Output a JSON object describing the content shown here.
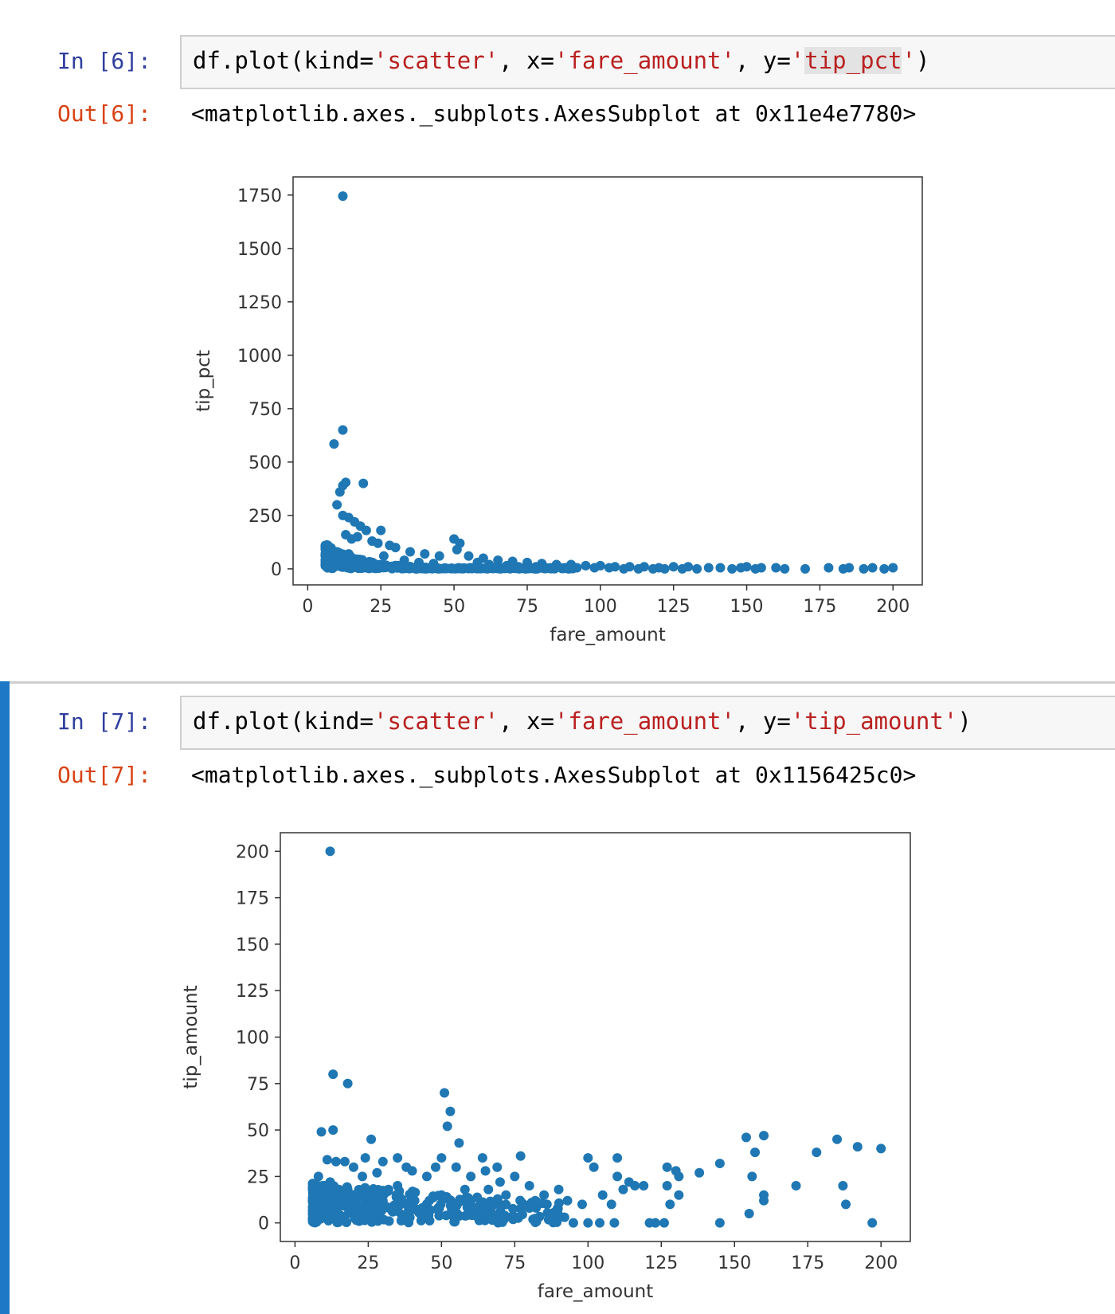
{
  "cells": [
    {
      "in_prompt": "In [6]:",
      "code": {
        "fn": "df.plot(kind=",
        "kind": "'scatter'",
        "sep1": ", x=",
        "x": "'fare_amount'",
        "sep2": ", y=",
        "y_q1": "'",
        "y": "tip_pct",
        "y_q2": "'",
        "end": ")"
      },
      "out_prompt": "Out[6]:",
      "out_text": "<matplotlib.axes._subplots.AxesSubplot at 0x11e4e7780>"
    },
    {
      "in_prompt": "In [7]:",
      "code": {
        "fn": "df.plot(kind=",
        "kind": "'scatter'",
        "sep1": ", x=",
        "x": "'fare_amount'",
        "sep2": ", y=",
        "y": "'tip_amount'",
        "end": ")"
      },
      "out_prompt": "Out[7]:",
      "out_text": "<matplotlib.axes._subplots.AxesSubplot at 0x1156425c0>"
    }
  ],
  "colors": {
    "marker": "#1f77b4",
    "in_prompt": "#303f9f",
    "out_prompt": "#d84315",
    "string": "#ba2121",
    "selected_bar": "#1e78c6"
  },
  "chart_data": [
    {
      "type": "scatter",
      "xlabel": "fare_amount",
      "ylabel": "tip_pct",
      "xlim": [
        -5,
        210
      ],
      "ylim": [
        -75,
        1835
      ],
      "xticks": [
        0,
        25,
        50,
        75,
        100,
        125,
        150,
        175,
        200
      ],
      "yticks": [
        0,
        250,
        500,
        750,
        1000,
        1250,
        1500,
        1750
      ],
      "grid": false,
      "points": [
        [
          12,
          1745
        ],
        [
          12,
          650
        ],
        [
          9,
          585
        ],
        [
          11,
          360
        ],
        [
          12,
          390
        ],
        [
          13,
          405
        ],
        [
          19,
          400
        ],
        [
          10,
          300
        ],
        [
          12,
          250
        ],
        [
          14,
          240
        ],
        [
          16,
          220
        ],
        [
          18,
          200
        ],
        [
          20,
          180
        ],
        [
          25,
          180
        ],
        [
          13,
          160
        ],
        [
          15,
          140
        ],
        [
          17,
          150
        ],
        [
          22,
          130
        ],
        [
          24,
          120
        ],
        [
          28,
          110
        ],
        [
          30,
          100
        ],
        [
          35,
          80
        ],
        [
          40,
          70
        ],
        [
          45,
          60
        ],
        [
          50,
          140
        ],
        [
          52,
          120
        ],
        [
          51,
          90
        ],
        [
          55,
          60
        ],
        [
          60,
          50
        ],
        [
          65,
          40
        ],
        [
          70,
          35
        ],
        [
          75,
          30
        ],
        [
          80,
          25
        ],
        [
          85,
          20
        ],
        [
          90,
          20
        ],
        [
          95,
          15
        ],
        [
          100,
          15
        ],
        [
          105,
          10
        ],
        [
          110,
          10
        ],
        [
          115,
          10
        ],
        [
          120,
          5
        ],
        [
          125,
          10
        ],
        [
          130,
          10
        ],
        [
          137,
          5
        ],
        [
          145,
          0
        ],
        [
          150,
          10
        ],
        [
          153,
          0
        ],
        [
          155,
          5
        ],
        [
          160,
          5
        ],
        [
          170,
          0
        ],
        [
          178,
          5
        ],
        [
          185,
          5
        ],
        [
          190,
          0
        ],
        [
          197,
          0
        ],
        [
          200,
          5
        ],
        [
          7,
          20
        ],
        [
          8,
          40
        ],
        [
          9,
          60
        ],
        [
          10,
          80
        ],
        [
          11,
          50
        ],
        [
          14,
          70
        ],
        [
          26,
          60
        ],
        [
          33,
          40
        ],
        [
          38,
          30
        ],
        [
          43,
          25
        ],
        [
          58,
          30
        ],
        [
          62,
          20
        ],
        [
          68,
          15
        ],
        [
          72,
          10
        ],
        [
          78,
          10
        ],
        [
          83,
          5
        ],
        [
          88,
          5
        ],
        [
          92,
          5
        ],
        [
          98,
          5
        ],
        [
          103,
          5
        ],
        [
          108,
          0
        ],
        [
          113,
          0
        ],
        [
          118,
          0
        ],
        [
          122,
          0
        ],
        [
          128,
          0
        ],
        [
          133,
          0
        ],
        [
          141,
          5
        ],
        [
          148,
          5
        ],
        [
          163,
          0
        ],
        [
          183,
          0
        ],
        [
          193,
          5
        ]
      ]
    },
    {
      "type": "scatter",
      "xlabel": "fare_amount",
      "ylabel": "tip_amount",
      "xlim": [
        -5,
        210
      ],
      "ylim": [
        -10,
        210
      ],
      "xticks": [
        0,
        25,
        50,
        75,
        100,
        125,
        150,
        175,
        200
      ],
      "yticks": [
        0,
        25,
        50,
        75,
        100,
        125,
        150,
        175,
        200
      ],
      "grid": false,
      "points": [
        [
          12,
          200
        ],
        [
          13,
          80
        ],
        [
          18,
          75
        ],
        [
          51,
          70
        ],
        [
          53,
          60
        ],
        [
          52,
          52
        ],
        [
          9,
          49
        ],
        [
          13,
          50
        ],
        [
          26,
          45
        ],
        [
          56,
          43
        ],
        [
          154,
          46
        ],
        [
          160,
          47
        ],
        [
          185,
          45
        ],
        [
          192,
          41
        ],
        [
          200,
          40
        ],
        [
          178,
          38
        ],
        [
          157,
          38
        ],
        [
          77,
          36
        ],
        [
          110,
          35
        ],
        [
          145,
          32
        ],
        [
          11,
          34
        ],
        [
          14,
          33
        ],
        [
          17,
          33
        ],
        [
          20,
          30
        ],
        [
          30,
          33
        ],
        [
          38,
          30
        ],
        [
          64,
          35
        ],
        [
          69,
          30
        ],
        [
          100,
          35
        ],
        [
          102,
          30
        ],
        [
          127,
          30
        ],
        [
          130,
          28
        ],
        [
          131,
          25
        ],
        [
          138,
          27
        ],
        [
          156,
          25
        ],
        [
          171,
          20
        ],
        [
          187,
          20
        ],
        [
          188,
          10
        ],
        [
          160,
          15
        ],
        [
          160,
          12
        ],
        [
          155,
          5
        ],
        [
          197,
          0
        ],
        [
          145,
          0
        ],
        [
          123,
          0
        ],
        [
          126,
          0
        ],
        [
          121,
          0
        ],
        [
          128,
          10
        ],
        [
          131,
          15
        ],
        [
          127,
          20
        ],
        [
          108,
          10
        ],
        [
          109,
          0
        ],
        [
          110,
          25
        ],
        [
          114,
          22
        ],
        [
          116,
          20
        ],
        [
          119,
          20
        ],
        [
          105,
          15
        ],
        [
          100,
          0
        ],
        [
          95,
          0
        ],
        [
          104,
          0
        ],
        [
          90,
          18
        ],
        [
          85,
          15
        ],
        [
          80,
          20
        ],
        [
          75,
          25
        ],
        [
          70,
          22
        ],
        [
          65,
          28
        ],
        [
          60,
          25
        ],
        [
          55,
          30
        ],
        [
          50,
          35
        ],
        [
          45,
          25
        ],
        [
          40,
          28
        ],
        [
          35,
          20
        ],
        [
          28,
          27
        ],
        [
          23,
          25
        ],
        [
          8,
          25
        ],
        [
          10,
          20
        ],
        [
          12,
          22
        ],
        [
          15,
          18
        ],
        [
          8,
          10
        ],
        [
          10,
          8
        ],
        [
          20,
          10
        ],
        [
          30,
          12
        ],
        [
          40,
          10
        ],
        [
          50,
          15
        ],
        [
          60,
          12
        ],
        [
          70,
          10
        ],
        [
          80,
          8
        ],
        [
          88,
          5
        ],
        [
          92,
          3
        ],
        [
          24,
          35
        ],
        [
          35,
          35
        ],
        [
          48,
          30
        ],
        [
          58,
          18
        ],
        [
          66,
          18
        ],
        [
          72,
          15
        ],
        [
          82,
          12
        ],
        [
          86,
          10
        ],
        [
          7,
          5
        ],
        [
          9,
          3
        ],
        [
          6,
          2
        ],
        [
          98,
          10
        ],
        [
          93,
          12
        ],
        [
          112,
          18
        ]
      ]
    }
  ]
}
